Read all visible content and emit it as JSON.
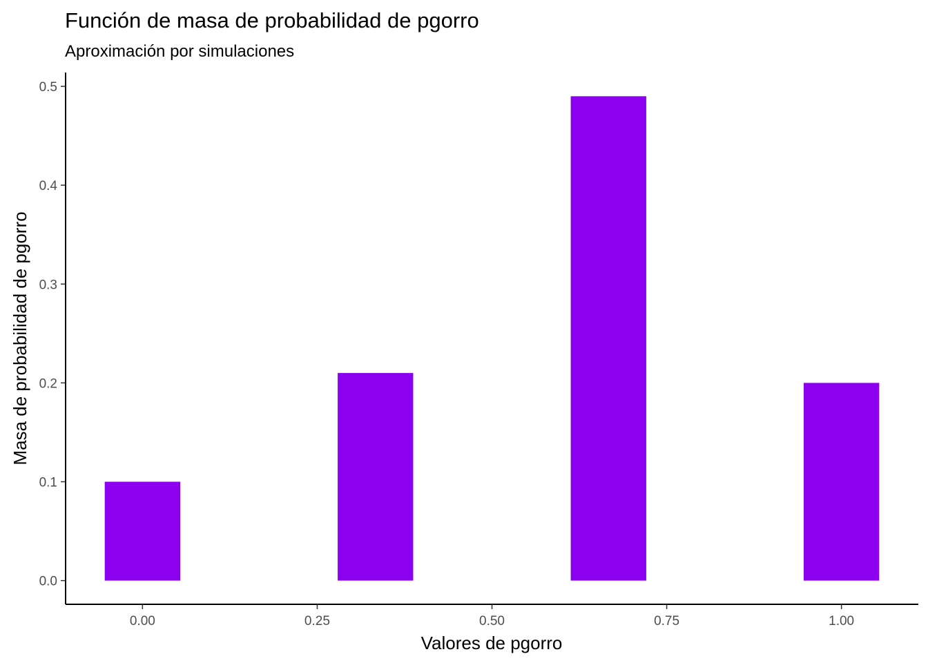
{
  "chart_data": {
    "type": "bar",
    "title": "Función de masa de probabilidad de pgorro",
    "subtitle": "Aproximación por simulaciones",
    "xlabel": "Valores de pgorro",
    "ylabel": "Masa de probabilidad de pgorro",
    "x": [
      0,
      0.3333,
      0.6667,
      1
    ],
    "values": [
      0.1,
      0.21,
      0.49,
      0.2
    ],
    "bar_width": 0.108,
    "bar_color": "#8B00EE",
    "xlim": [
      -0.11,
      1.11
    ],
    "ylim": [
      -0.024,
      0.514
    ],
    "x_ticks": [
      0,
      0.25,
      0.5,
      0.75,
      1
    ],
    "x_tick_labels": [
      "0.00",
      "0.25",
      "0.50",
      "0.75",
      "1.00"
    ],
    "y_ticks": [
      0,
      0.1,
      0.2,
      0.3,
      0.4,
      0.5
    ],
    "y_tick_labels": [
      "0.0",
      "0.1",
      "0.2",
      "0.3",
      "0.4",
      "0.5"
    ],
    "grid": false,
    "legend": "none"
  }
}
